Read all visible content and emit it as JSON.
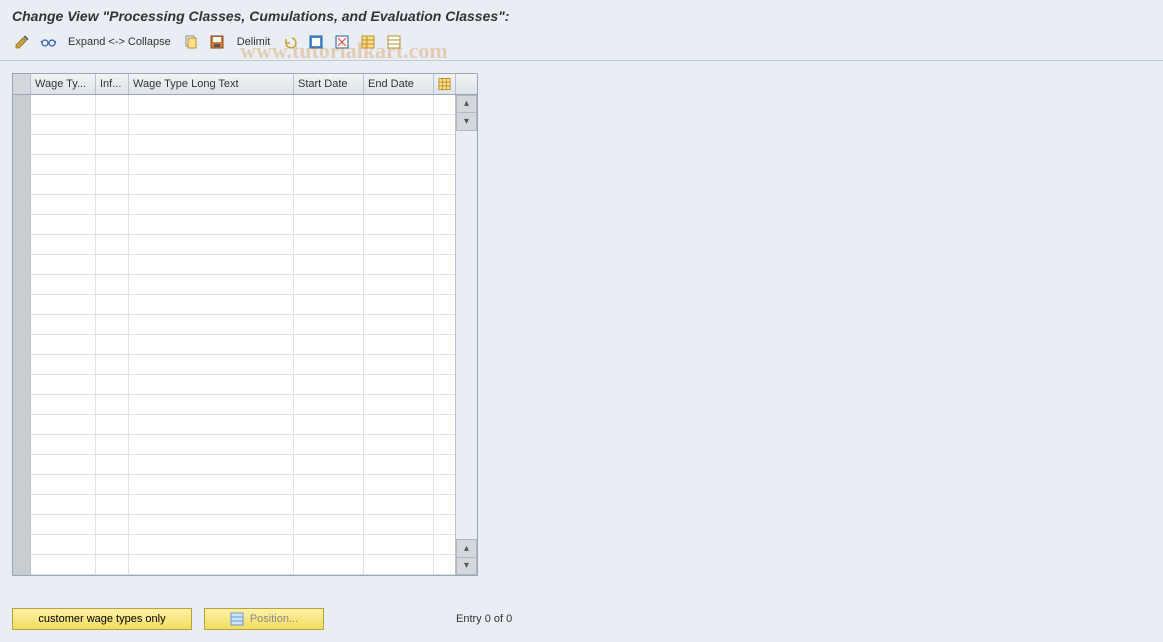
{
  "header": {
    "title": "Change View \"Processing Classes, Cumulations, and Evaluation Classes\":"
  },
  "toolbar": {
    "expand_label": "Expand <-> Collapse",
    "delimit_label": "Delimit"
  },
  "table": {
    "columns": [
      "Wage Ty...",
      "Inf...",
      "Wage Type Long Text",
      "Start Date",
      "End Date"
    ],
    "row_count": 24
  },
  "footer": {
    "customer_btn": "customer wage types only",
    "position_btn": "Position...",
    "status": "Entry 0 of 0"
  },
  "watermark": "www.tutorialkart.com",
  "colors": {
    "bg": "#e8eef4",
    "header_grad_top": "#f2f4f6",
    "header_grad_bot": "#dde3e9",
    "border": "#9aa6b2",
    "btn_grad_top": "#fff2a8",
    "btn_grad_bot": "#f3dc5e"
  }
}
